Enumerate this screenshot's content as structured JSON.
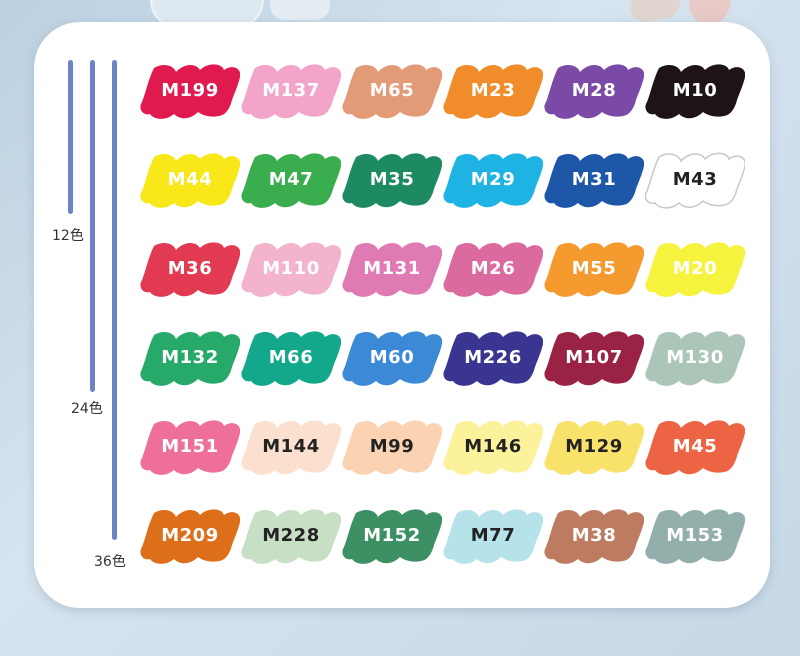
{
  "groups": [
    {
      "label": "12色"
    },
    {
      "label": "24色"
    },
    {
      "label": "36色"
    }
  ],
  "swatches": [
    {
      "code": "M199",
      "color": "#e01a4f",
      "text": "#ffffff"
    },
    {
      "code": "M137",
      "color": "#f2a4c9",
      "text": "#ffffff"
    },
    {
      "code": "M65",
      "color": "#e39a76",
      "text": "#ffffff"
    },
    {
      "code": "M23",
      "color": "#f08c2a",
      "text": "#ffffff"
    },
    {
      "code": "M28",
      "color": "#7b4aa6",
      "text": "#ffffff"
    },
    {
      "code": "M10",
      "color": "#1e1416",
      "text": "#ffffff"
    },
    {
      "code": "M44",
      "color": "#f8e81a",
      "text": "#ffffff"
    },
    {
      "code": "M47",
      "color": "#3aad4f",
      "text": "#ffffff"
    },
    {
      "code": "M35",
      "color": "#1e8a62",
      "text": "#ffffff"
    },
    {
      "code": "M29",
      "color": "#1fb3e3",
      "text": "#ffffff"
    },
    {
      "code": "M31",
      "color": "#1f57a8",
      "text": "#ffffff"
    },
    {
      "code": "M43",
      "color": "#ffffff",
      "text": "#222222",
      "stroke": "#c8c8c8"
    },
    {
      "code": "M36",
      "color": "#e23a52",
      "text": "#ffffff"
    },
    {
      "code": "M110",
      "color": "#f4b3cc",
      "text": "#ffffff"
    },
    {
      "code": "M131",
      "color": "#e07ab3",
      "text": "#ffffff"
    },
    {
      "code": "M26",
      "color": "#db6a9e",
      "text": "#ffffff"
    },
    {
      "code": "M55",
      "color": "#f59a2e",
      "text": "#ffffff"
    },
    {
      "code": "M20",
      "color": "#f6f33f",
      "text": "#ffffff"
    },
    {
      "code": "M132",
      "color": "#27a96a",
      "text": "#ffffff"
    },
    {
      "code": "M66",
      "color": "#13a78c",
      "text": "#ffffff"
    },
    {
      "code": "M60",
      "color": "#3c8ad6",
      "text": "#ffffff"
    },
    {
      "code": "M226",
      "color": "#3a3591",
      "text": "#ffffff"
    },
    {
      "code": "M107",
      "color": "#9a2345",
      "text": "#ffffff"
    },
    {
      "code": "M130",
      "color": "#abc5b9",
      "text": "#ffffff"
    },
    {
      "code": "M151",
      "color": "#ee6f98",
      "text": "#ffffff"
    },
    {
      "code": "M144",
      "color": "#fbe0cf",
      "text": "#222222"
    },
    {
      "code": "M99",
      "color": "#fcd3b2",
      "text": "#222222"
    },
    {
      "code": "M146",
      "color": "#fcf29c",
      "text": "#222222"
    },
    {
      "code": "M129",
      "color": "#f9e26a",
      "text": "#222222"
    },
    {
      "code": "M45",
      "color": "#ec6444",
      "text": "#ffffff"
    },
    {
      "code": "M209",
      "color": "#dd6e1a",
      "text": "#ffffff"
    },
    {
      "code": "M228",
      "color": "#c7dfc4",
      "text": "#222222"
    },
    {
      "code": "M152",
      "color": "#3c9064",
      "text": "#ffffff"
    },
    {
      "code": "M77",
      "color": "#b6e3e9",
      "text": "#222222"
    },
    {
      "code": "M38",
      "color": "#bd7c62",
      "text": "#ffffff"
    },
    {
      "code": "M153",
      "color": "#92afac",
      "text": "#ffffff"
    }
  ]
}
